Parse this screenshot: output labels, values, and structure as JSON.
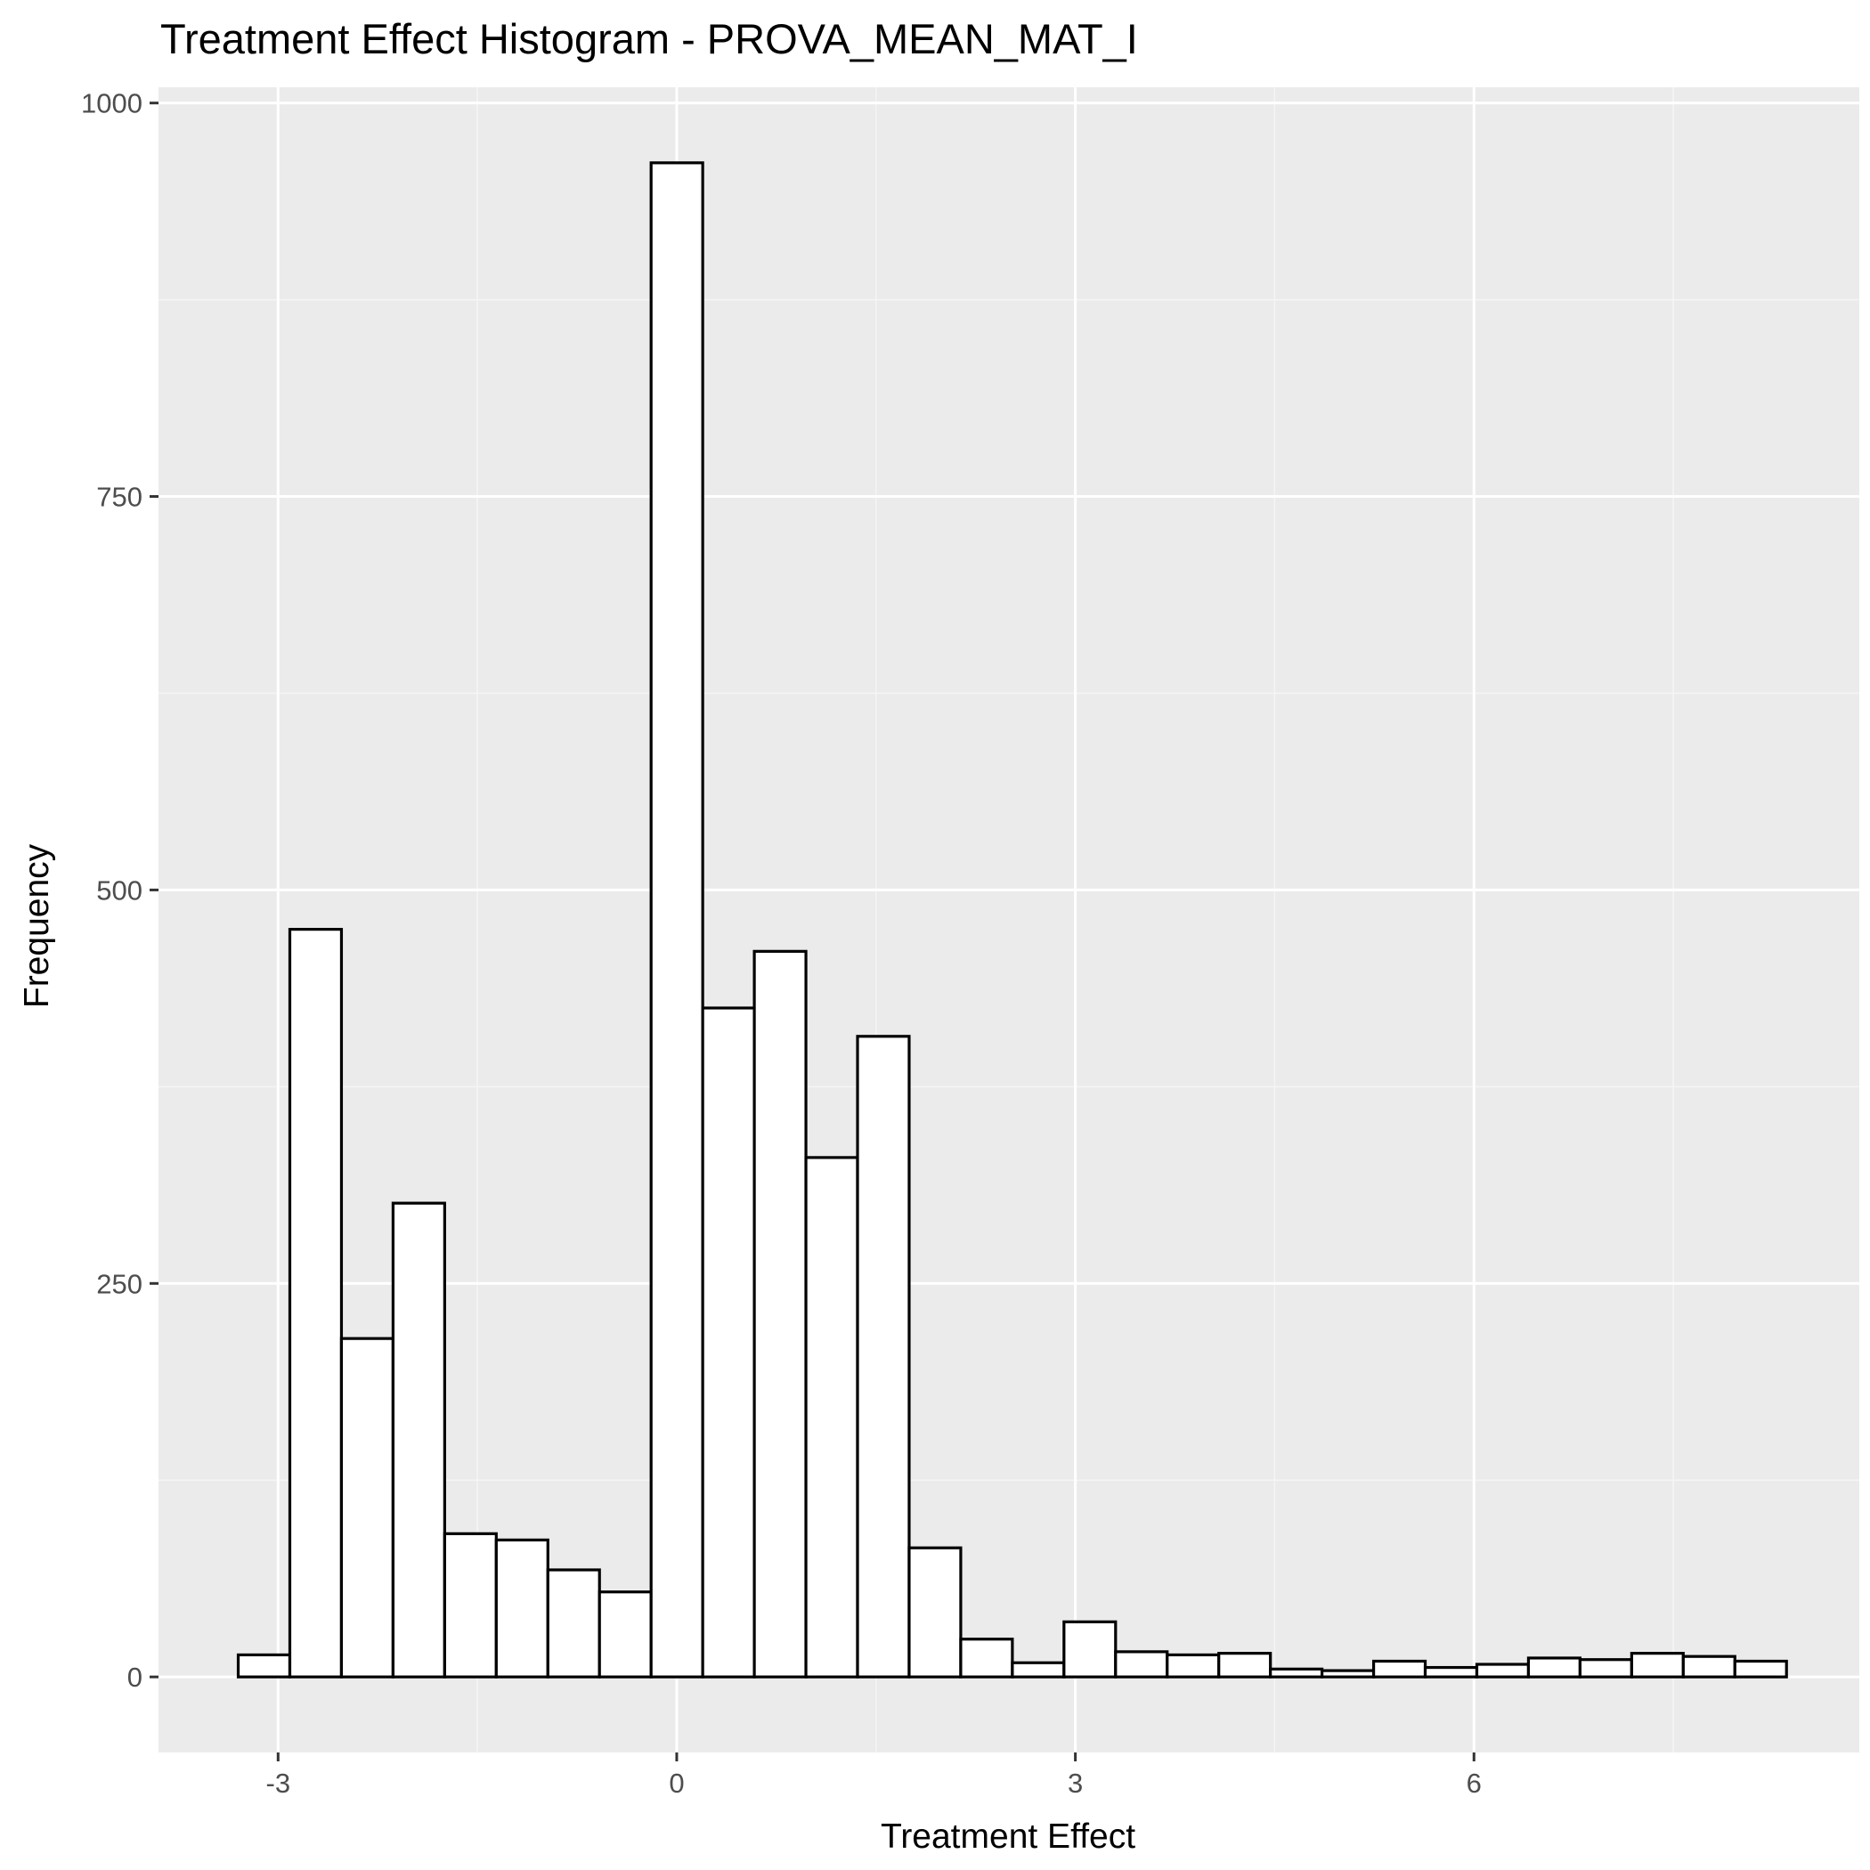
{
  "chart_data": {
    "type": "bar",
    "title": "Treatment Effect Histogram -  PROVA_MEAN_MAT_I",
    "xlabel": "Treatment Effect",
    "ylabel": "Frequency",
    "bin_width": 0.3884,
    "bins": [
      {
        "x0": -3.3,
        "x1": -2.9116,
        "count": 14
      },
      {
        "x0": -2.9116,
        "x1": -2.5232,
        "count": 475
      },
      {
        "x0": -2.5232,
        "x1": -2.1348,
        "count": 215
      },
      {
        "x0": -2.1348,
        "x1": -1.7464,
        "count": 301
      },
      {
        "x0": -1.7464,
        "x1": -1.358,
        "count": 91
      },
      {
        "x0": -1.358,
        "x1": -0.9696,
        "count": 87
      },
      {
        "x0": -0.9696,
        "x1": -0.5812,
        "count": 68
      },
      {
        "x0": -0.5812,
        "x1": -0.1928,
        "count": 54
      },
      {
        "x0": -0.1928,
        "x1": 0.1956,
        "count": 962
      },
      {
        "x0": 0.1956,
        "x1": 0.584,
        "count": 425
      },
      {
        "x0": 0.584,
        "x1": 0.9724,
        "count": 461
      },
      {
        "x0": 0.9724,
        "x1": 1.3608,
        "count": 330
      },
      {
        "x0": 1.3608,
        "x1": 1.7492,
        "count": 407
      },
      {
        "x0": 1.7492,
        "x1": 2.1376,
        "count": 82
      },
      {
        "x0": 2.1376,
        "x1": 2.526,
        "count": 24
      },
      {
        "x0": 2.526,
        "x1": 2.9144,
        "count": 9
      },
      {
        "x0": 2.9144,
        "x1": 3.3028,
        "count": 35
      },
      {
        "x0": 3.3028,
        "x1": 3.6912,
        "count": 16
      },
      {
        "x0": 3.6912,
        "x1": 4.0796,
        "count": 14
      },
      {
        "x0": 4.0796,
        "x1": 4.468,
        "count": 15
      },
      {
        "x0": 4.468,
        "x1": 4.8564,
        "count": 5
      },
      {
        "x0": 4.8564,
        "x1": 5.2448,
        "count": 4
      },
      {
        "x0": 5.2448,
        "x1": 5.6332,
        "count": 10
      },
      {
        "x0": 5.6332,
        "x1": 6.0216,
        "count": 6
      },
      {
        "x0": 6.0216,
        "x1": 6.41,
        "count": 8
      },
      {
        "x0": 6.41,
        "x1": 6.7984,
        "count": 12
      },
      {
        "x0": 6.7984,
        "x1": 7.1868,
        "count": 11
      },
      {
        "x0": 7.1868,
        "x1": 7.5752,
        "count": 15
      },
      {
        "x0": 7.5752,
        "x1": 7.9636,
        "count": 13
      },
      {
        "x0": 7.9636,
        "x1": 8.352,
        "count": 10
      }
    ],
    "xlim": [
      -3.9,
      8.9
    ],
    "ylim": [
      -48,
      1010
    ],
    "xticks": [
      -3,
      0,
      3,
      6
    ],
    "xtick_labels": [
      "-3",
      "0",
      "3",
      "6"
    ],
    "yticks": [
      0,
      250,
      500,
      750,
      1000
    ],
    "ytick_labels": [
      "0",
      "250",
      "500",
      "750",
      "1000"
    ],
    "grid": true,
    "legend": "none",
    "colors": {
      "panel_background": "#ebebeb",
      "grid_major": "#ffffff",
      "grid_minor": "#f5f5f5",
      "bar_fill": "#ffffff",
      "bar_outline": "#000000",
      "tick_label": "#4d4d4d",
      "tick_mark": "#333333"
    }
  }
}
